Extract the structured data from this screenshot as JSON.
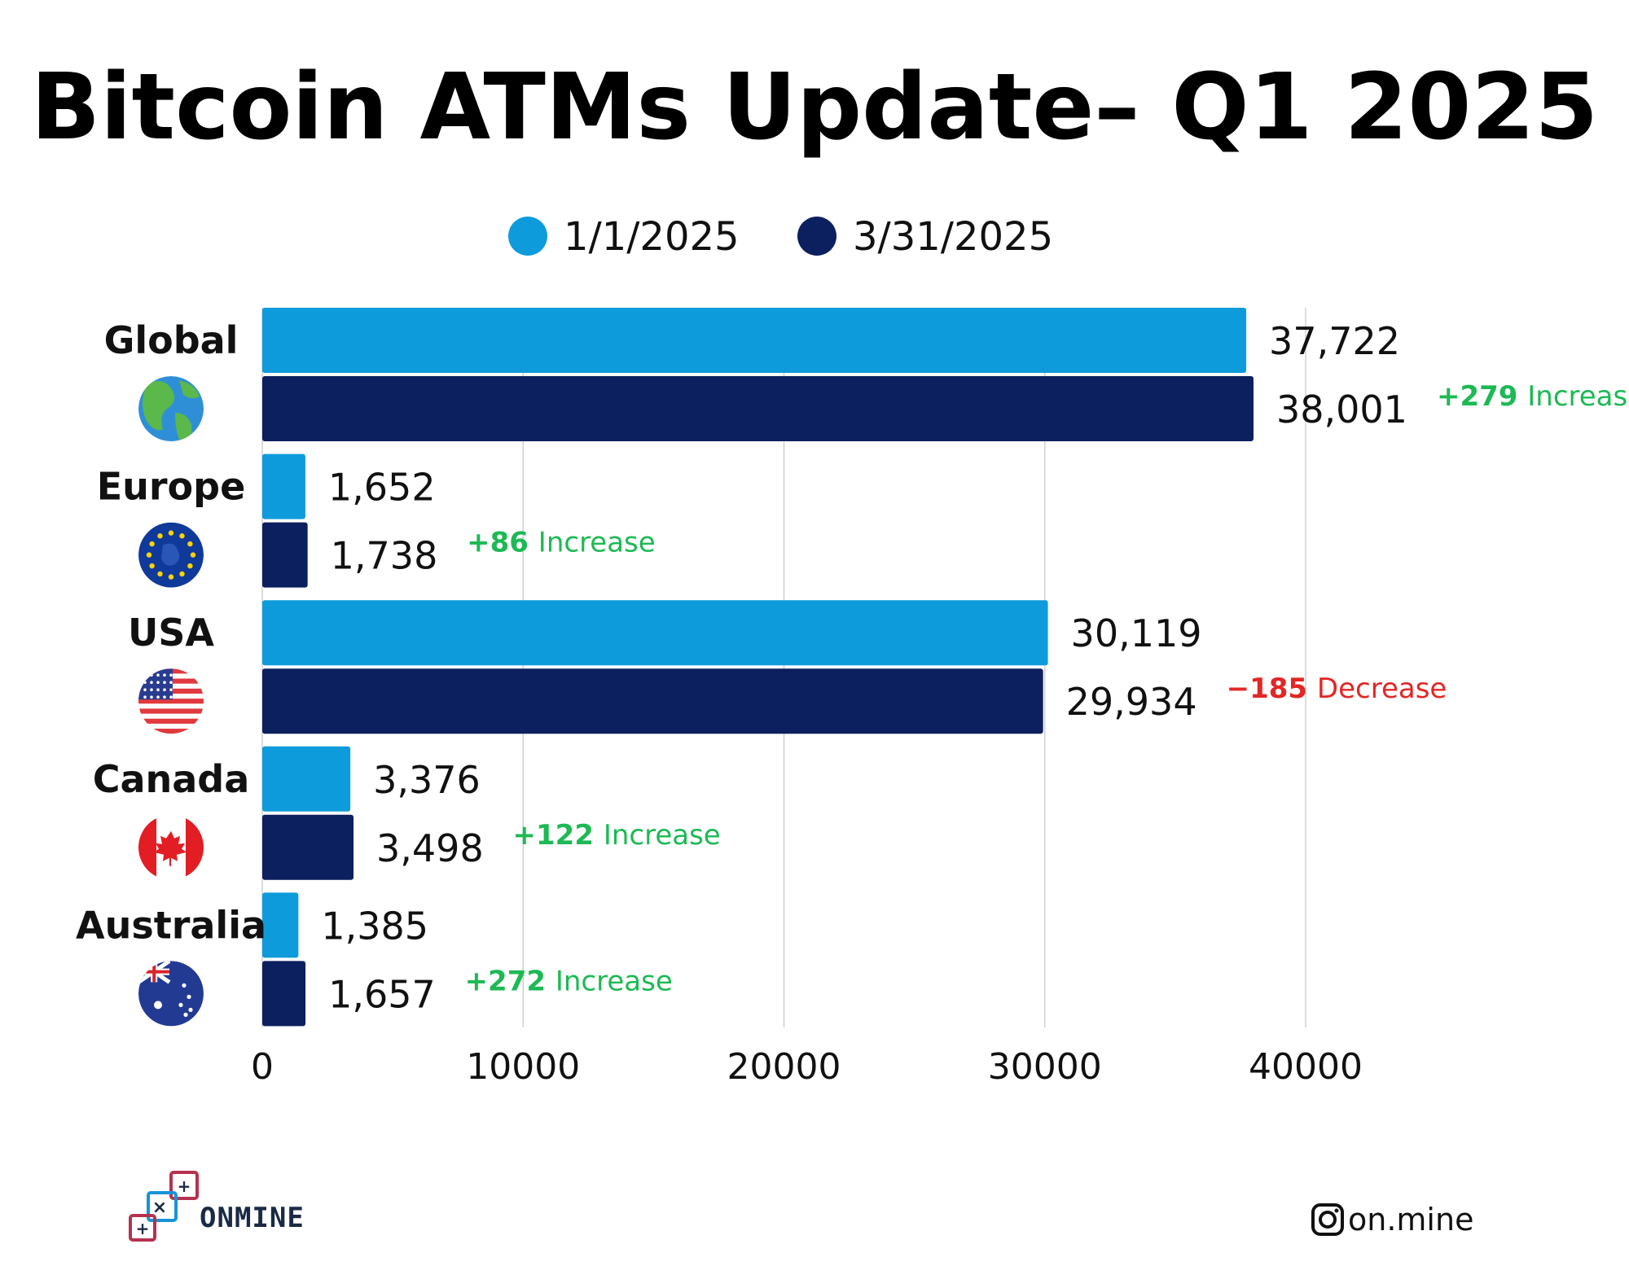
{
  "header": {
    "title": "Bitcoin ATMs Update– Q1 2025"
  },
  "colors": {
    "series_1": "#0e9bdb",
    "series_2": "#0c1f5e",
    "increase": "#1db954",
    "decrease": "#e32626",
    "grid": "#d0d0d0"
  },
  "chart_data": {
    "type": "bar",
    "orientation": "horizontal",
    "categories": [
      "Global",
      "Europe",
      "USA",
      "Canada",
      "Australia"
    ],
    "series": [
      {
        "name": "1/1/2025",
        "values": [
          37722,
          1652,
          30119,
          3376,
          1385
        ],
        "labels": [
          "37,722",
          "1,652",
          "30,119",
          "3,376",
          "1,385"
        ]
      },
      {
        "name": "3/31/2025",
        "values": [
          38001,
          1738,
          29934,
          3498,
          1657
        ],
        "labels": [
          "38,001",
          "1,738",
          "29,934",
          "3,498",
          "1,657"
        ]
      }
    ],
    "changes": [
      {
        "amount": "+279",
        "word": "Increase",
        "direction": "increase"
      },
      {
        "amount": "+86",
        "word": "Increase",
        "direction": "increase"
      },
      {
        "amount": "−185",
        "word": "Decrease",
        "direction": "decrease"
      },
      {
        "amount": "+122",
        "word": "Increase",
        "direction": "increase"
      },
      {
        "amount": "+272",
        "word": "Increase",
        "direction": "increase"
      }
    ],
    "xlim": [
      0,
      40000
    ],
    "xticks": [
      0,
      10000,
      20000,
      30000,
      40000
    ],
    "xtick_labels": [
      "0",
      "10000",
      "20000",
      "30000",
      "40000"
    ],
    "grid": true,
    "legend_position": "top-center"
  },
  "category_icons": [
    "globe-icon",
    "eu-flag-icon",
    "us-flag-icon",
    "canada-flag-icon",
    "australia-flag-icon"
  ],
  "footer": {
    "brand_name": "ONMINE",
    "brand_icon": "onmine-logo-icon",
    "social_icon": "instagram-icon",
    "social_handle": "on.mine"
  }
}
